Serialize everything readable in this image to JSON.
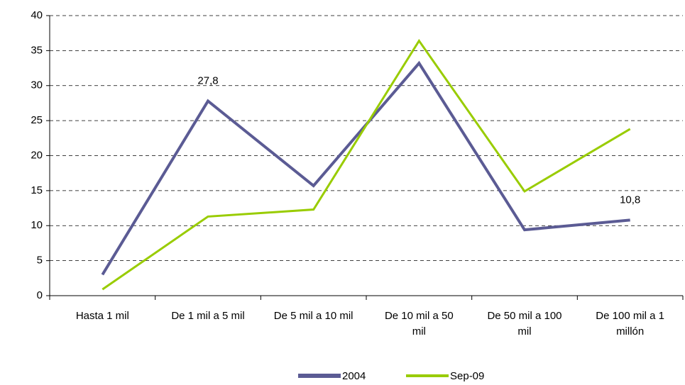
{
  "chart_data": {
    "type": "line",
    "categories": [
      "Hasta 1 mil",
      "De 1 mil a 5 mil",
      "De 5 mil a 10 mil",
      "De 10 mil a 50 mil",
      "De 50 mil a 100 mil",
      "De 100 mil a 1 millón"
    ],
    "series": [
      {
        "name": "2004",
        "color": "#5b5b94",
        "values": [
          3,
          27.8,
          15.7,
          33.2,
          9.4,
          10.8
        ],
        "value_labels": [
          null,
          "27,8",
          null,
          null,
          null,
          "10,8"
        ]
      },
      {
        "name": "Sep-09",
        "color": "#99cc00",
        "values": [
          0.9,
          11.3,
          12.3,
          36.4,
          14.9,
          23.8
        ]
      }
    ],
    "ylim": [
      0,
      40
    ],
    "yticks": [
      0,
      5,
      10,
      15,
      20,
      25,
      30,
      35,
      40
    ],
    "grid": true,
    "legend": "bottom"
  }
}
